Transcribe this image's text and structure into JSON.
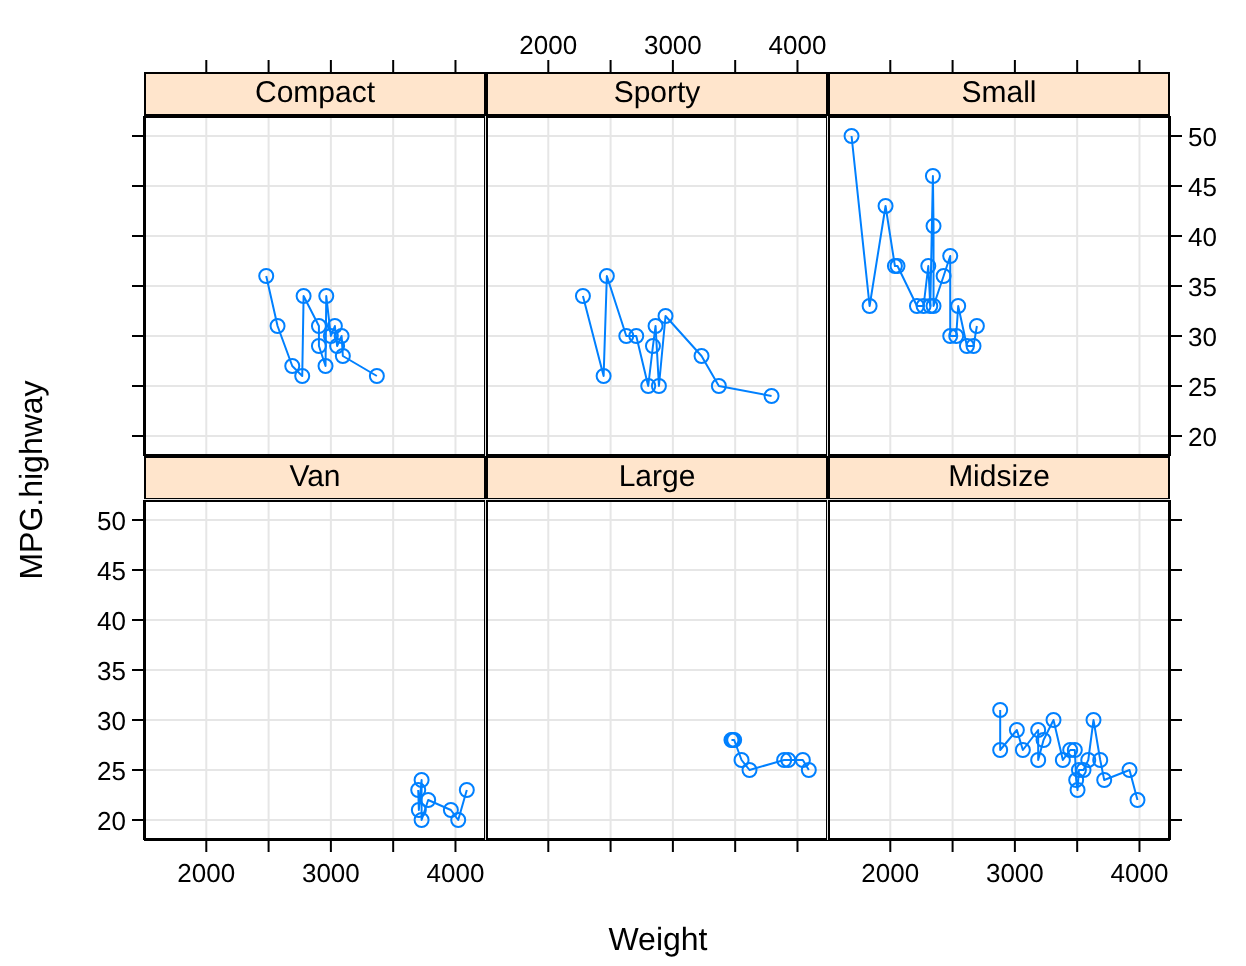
{
  "chart_data": [
    {
      "type": "line",
      "title": "Compact",
      "x": [
        2481,
        2572,
        2690,
        2770,
        2781,
        2904,
        2904,
        2957,
        2963,
        3000,
        3032,
        3050,
        3086,
        3096,
        3369
      ],
      "series": [
        {
          "color": "#0080ff",
          "values": [
            36,
            31,
            27,
            26,
            34,
            31,
            29,
            27,
            34,
            30,
            31,
            29,
            30,
            28,
            26
          ]
        }
      ],
      "xlim": [
        1500,
        4245
      ],
      "ylim": [
        18,
        52
      ],
      "xticks": [
        {
          "value": 2000,
          "label": null
        },
        {
          "value": 2500,
          "label": null
        },
        {
          "value": 3000,
          "label": null
        },
        {
          "value": 3500,
          "label": null
        },
        {
          "value": 4000,
          "label": null
        }
      ],
      "yticks": [
        {
          "value": 20,
          "label": null
        },
        {
          "value": 25,
          "label": null
        },
        {
          "value": 30,
          "label": null
        },
        {
          "value": 35,
          "label": null
        },
        {
          "value": 40,
          "label": null
        },
        {
          "value": 45,
          "label": null
        },
        {
          "value": 50,
          "label": null
        }
      ],
      "grid": true,
      "marker": "circle",
      "tick_labels": false
    },
    {
      "type": "line",
      "title": "Sporty",
      "x": [
        2278,
        2444,
        2470,
        2626,
        2706,
        2802,
        2840,
        2861,
        2888,
        2941,
        3230,
        3369,
        3792
      ],
      "series": [
        {
          "color": "#0080ff",
          "values": [
            34,
            26,
            36,
            30,
            30,
            25,
            29,
            31,
            25,
            32,
            28,
            25,
            24
          ]
        }
      ],
      "xlim": [
        1500,
        4245
      ],
      "ylim": [
        18,
        52
      ],
      "xticks": [
        2000,
        {
          "value": 2500,
          "label": null
        },
        3000,
        {
          "value": 3500,
          "label": null
        },
        4000
      ],
      "yticks": [
        {
          "value": 20,
          "label": null
        },
        {
          "value": 25,
          "label": null
        },
        {
          "value": 30,
          "label": null
        },
        {
          "value": 35,
          "label": null
        },
        {
          "value": 40,
          "label": null
        },
        {
          "value": 45,
          "label": null
        },
        {
          "value": 50,
          "label": null
        }
      ],
      "grid": true,
      "marker": "circle",
      "tick_labels": "x"
    },
    {
      "type": "line",
      "title": "Small",
      "x": [
        1689,
        1834,
        1962,
        2037,
        2058,
        2214,
        2267,
        2305,
        2321,
        2342,
        2347,
        2347,
        2428,
        2481,
        2481,
        2529,
        2545,
        2615,
        2668,
        2695
      ],
      "series": [
        {
          "color": "#0080ff",
          "values": [
            50,
            33,
            43,
            37,
            37,
            33,
            33,
            37,
            33,
            46,
            41,
            33,
            36,
            38,
            30,
            30,
            33,
            29,
            29,
            31
          ]
        }
      ],
      "xlim": [
        1500,
        4245
      ],
      "ylim": [
        18,
        52
      ],
      "xticks": [
        {
          "value": 2000,
          "label": null
        },
        {
          "value": 2500,
          "label": null
        },
        {
          "value": 3000,
          "label": null
        },
        {
          "value": 3500,
          "label": null
        },
        {
          "value": 4000,
          "label": null
        }
      ],
      "yticks": [
        20,
        25,
        30,
        35,
        40,
        45,
        50
      ],
      "grid": true,
      "marker": "circle",
      "tick_labels": "y"
    },
    {
      "type": "line",
      "title": "Van",
      "ylabel": "MPG.highway",
      "x": [
        3701,
        3706,
        3728,
        3728,
        3781,
        3963,
        4022,
        4091
      ],
      "series": [
        {
          "color": "#0080ff",
          "values": [
            23,
            21,
            24,
            20,
            22,
            21,
            20,
            23
          ]
        }
      ],
      "xlim": [
        1500,
        4245
      ],
      "ylim": [
        18,
        52
      ],
      "xticks": [
        2000,
        {
          "value": 2500,
          "label": null
        },
        3000,
        {
          "value": 3500,
          "label": null
        },
        4000
      ],
      "yticks": [
        20,
        25,
        30,
        35,
        40,
        45,
        50
      ],
      "grid": true,
      "marker": "circle"
    },
    {
      "type": "line",
      "title": "Large",
      "xlabel": "Weight",
      "x": [
        3470,
        3481,
        3492,
        3551,
        3615,
        3893,
        3926,
        4043,
        4091
      ],
      "series": [
        {
          "color": "#0080ff",
          "values": [
            28,
            28,
            28,
            26,
            25,
            26,
            26,
            26,
            25
          ]
        }
      ],
      "xlim": [
        1500,
        4245
      ],
      "ylim": [
        18,
        52
      ],
      "xticks": [
        {
          "value": 2000,
          "label": null
        },
        {
          "value": 2500,
          "label": null
        },
        {
          "value": 3000,
          "label": null
        },
        {
          "value": 3500,
          "label": null
        },
        {
          "value": 4000,
          "label": null
        }
      ],
      "yticks": [
        {
          "value": 20,
          "label": null
        },
        {
          "value": 25,
          "label": null
        },
        {
          "value": 30,
          "label": null
        },
        {
          "value": 35,
          "label": null
        },
        {
          "value": 40,
          "label": null
        },
        {
          "value": 45,
          "label": null
        },
        {
          "value": 50,
          "label": null
        }
      ],
      "grid": true,
      "marker": "circle",
      "tick_labels": false
    },
    {
      "type": "line",
      "title": "Midsize",
      "x": [
        2882,
        2882,
        3016,
        3064,
        3187,
        3187,
        3230,
        3310,
        3385,
        3444,
        3481,
        3492,
        3503,
        3514,
        3551,
        3589,
        3631,
        3685,
        3717,
        3920,
        3984
      ],
      "series": [
        {
          "color": "#0080ff",
          "values": [
            31,
            27,
            29,
            27,
            29,
            26,
            28,
            30,
            26,
            27,
            27,
            24,
            23,
            25,
            25,
            26,
            30,
            26,
            24,
            25,
            22
          ]
        }
      ],
      "xlim": [
        1500,
        4245
      ],
      "ylim": [
        18,
        52
      ],
      "xticks": [
        2000,
        {
          "value": 2500,
          "label": null
        },
        3000,
        {
          "value": 3500,
          "label": null
        },
        4000
      ],
      "yticks": [
        {
          "value": 20,
          "label": null
        },
        {
          "value": 25,
          "label": null
        },
        {
          "value": 30,
          "label": null
        },
        {
          "value": 35,
          "label": null
        },
        {
          "value": 40,
          "label": null
        },
        {
          "value": 45,
          "label": null
        },
        {
          "value": 50,
          "label": null
        }
      ],
      "grid": true,
      "marker": "circle",
      "tick_labels": "x"
    }
  ]
}
